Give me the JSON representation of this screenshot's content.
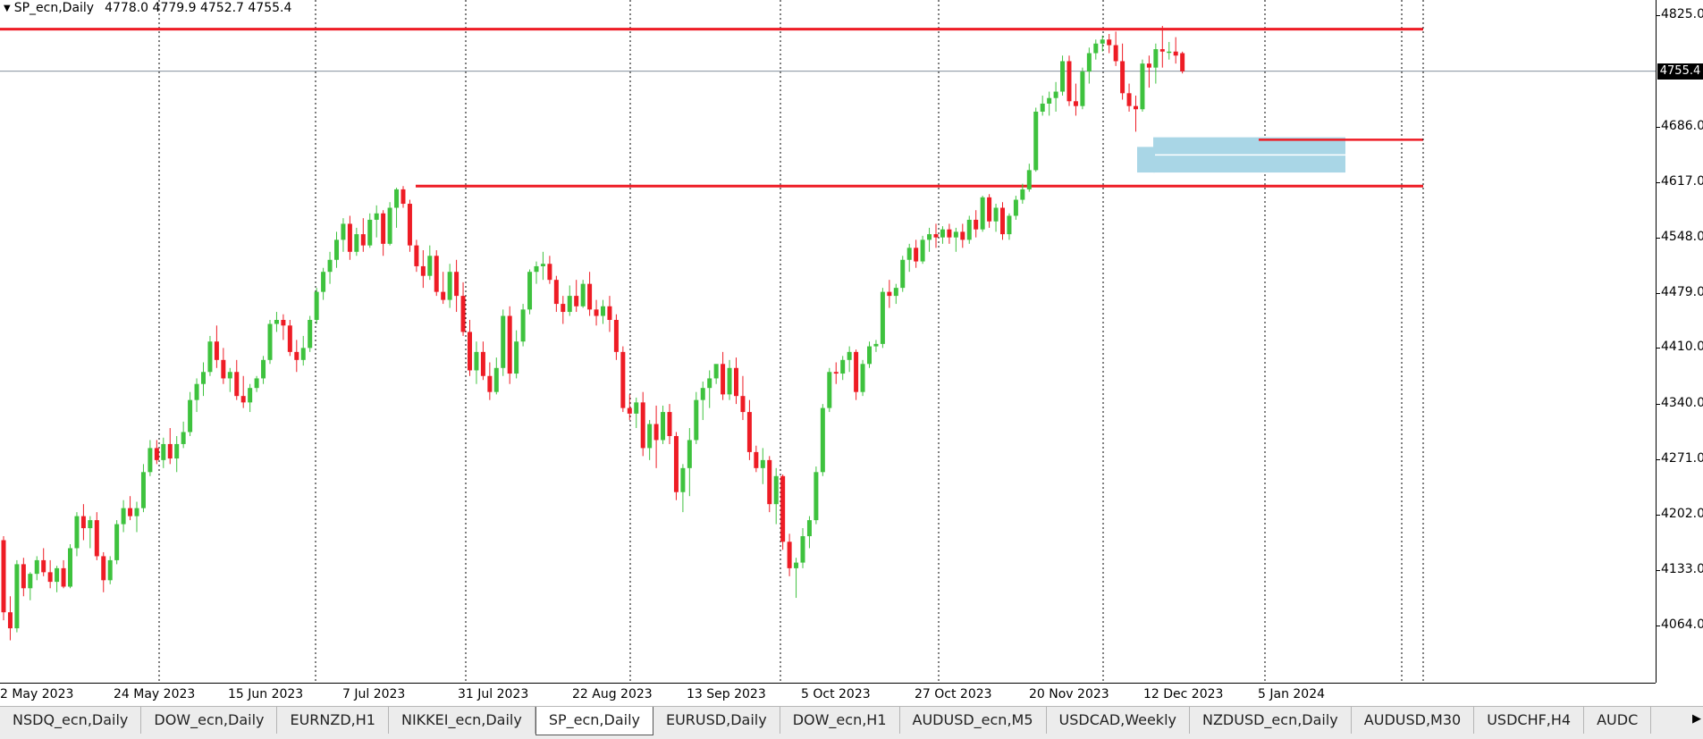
{
  "header": {
    "symbol": "SP_ecn,Daily",
    "ohlc": "4778.0 4779.9 4752.7 4755.4"
  },
  "current_price": "4755.4",
  "colors": {
    "bull": "#3ec23e",
    "bear": "#ee1c25",
    "level_line": "#ee1c25",
    "zone": "#a9d6e6",
    "grid": "#000000"
  },
  "chart_data": {
    "type": "candlestick",
    "title": "SP_ecn,Daily",
    "ylim": [
      4030,
      4831
    ],
    "y_ticks": [
      "4825.0",
      "4755.4",
      "4686.0",
      "4617.0",
      "4548.0",
      "4479.0",
      "4410.0",
      "4340.0",
      "4271.0",
      "4202.0",
      "4133.0",
      "4064.0"
    ],
    "x_ticks": [
      "2 May 2023",
      "24 May 2023",
      "15 Jun 2023",
      "7 Jul 2023",
      "31 Jul 2023",
      "22 Aug 2023",
      "13 Sep 2023",
      "5 Oct 2023",
      "27 Oct 2023",
      "20 Nov 2023",
      "12 Dec 2023",
      "5 Jan 2024"
    ],
    "grid": "vertical dotted",
    "horizontal_levels": [
      4808,
      4612,
      4670
    ],
    "current_price_line": 4755.4,
    "demand_zone": [
      4629,
      4673
    ],
    "candles": [
      [
        4170,
        4175,
        4070,
        4080
      ],
      [
        4080,
        4100,
        4045,
        4060
      ],
      [
        4060,
        4145,
        4055,
        4140
      ],
      [
        4140,
        4148,
        4100,
        4110
      ],
      [
        4110,
        4130,
        4095,
        4128
      ],
      [
        4128,
        4150,
        4120,
        4145
      ],
      [
        4145,
        4160,
        4125,
        4130
      ],
      [
        4130,
        4145,
        4110,
        4118
      ],
      [
        4118,
        4138,
        4105,
        4135
      ],
      [
        4135,
        4145,
        4110,
        4112
      ],
      [
        4112,
        4165,
        4110,
        4160
      ],
      [
        4160,
        4205,
        4150,
        4200
      ],
      [
        4200,
        4215,
        4170,
        4185
      ],
      [
        4185,
        4200,
        4160,
        4195
      ],
      [
        4195,
        4205,
        4145,
        4150
      ],
      [
        4150,
        4155,
        4105,
        4120
      ],
      [
        4120,
        4150,
        4115,
        4145
      ],
      [
        4145,
        4195,
        4140,
        4190
      ],
      [
        4190,
        4220,
        4180,
        4210
      ],
      [
        4210,
        4225,
        4195,
        4200
      ],
      [
        4200,
        4218,
        4180,
        4210
      ],
      [
        4210,
        4265,
        4205,
        4255
      ],
      [
        4255,
        4295,
        4250,
        4285
      ],
      [
        4285,
        4295,
        4265,
        4270
      ],
      [
        4270,
        4298,
        4260,
        4290
      ],
      [
        4290,
        4310,
        4265,
        4272
      ],
      [
        4272,
        4300,
        4255,
        4290
      ],
      [
        4290,
        4318,
        4285,
        4305
      ],
      [
        4305,
        4355,
        4300,
        4345
      ],
      [
        4345,
        4372,
        4330,
        4365
      ],
      [
        4365,
        4392,
        4350,
        4380
      ],
      [
        4380,
        4425,
        4375,
        4418
      ],
      [
        4418,
        4438,
        4385,
        4395
      ],
      [
        4395,
        4410,
        4365,
        4372
      ],
      [
        4372,
        4385,
        4355,
        4380
      ],
      [
        4380,
        4395,
        4345,
        4350
      ],
      [
        4350,
        4375,
        4335,
        4342
      ],
      [
        4342,
        4365,
        4330,
        4360
      ],
      [
        4360,
        4375,
        4355,
        4372
      ],
      [
        4372,
        4400,
        4365,
        4395
      ],
      [
        4395,
        4445,
        4390,
        4440
      ],
      [
        4440,
        4455,
        4430,
        4445
      ],
      [
        4445,
        4452,
        4420,
        4438
      ],
      [
        4438,
        4445,
        4400,
        4405
      ],
      [
        4405,
        4420,
        4380,
        4395
      ],
      [
        4395,
        4425,
        4388,
        4410
      ],
      [
        4410,
        4450,
        4405,
        4445
      ],
      [
        4445,
        4485,
        4440,
        4480
      ],
      [
        4480,
        4510,
        4470,
        4505
      ],
      [
        4505,
        4530,
        4490,
        4520
      ],
      [
        4520,
        4555,
        4510,
        4545
      ],
      [
        4545,
        4572,
        4530,
        4565
      ],
      [
        4565,
        4575,
        4520,
        4530
      ],
      [
        4530,
        4560,
        4525,
        4552
      ],
      [
        4552,
        4572,
        4530,
        4538
      ],
      [
        4538,
        4578,
        4535,
        4570
      ],
      [
        4570,
        4588,
        4548,
        4578
      ],
      [
        4578,
        4582,
        4525,
        4540
      ],
      [
        4540,
        4592,
        4538,
        4585
      ],
      [
        4585,
        4610,
        4560,
        4608
      ],
      [
        4608,
        4612,
        4585,
        4590
      ],
      [
        4590,
        4595,
        4530,
        4538
      ],
      [
        4538,
        4545,
        4505,
        4512
      ],
      [
        4512,
        4532,
        4485,
        4500
      ],
      [
        4500,
        4538,
        4495,
        4525
      ],
      [
        4525,
        4532,
        4475,
        4480
      ],
      [
        4480,
        4505,
        4465,
        4470
      ],
      [
        4470,
        4515,
        4460,
        4505
      ],
      [
        4505,
        4520,
        4455,
        4475
      ],
      [
        4475,
        4492,
        4425,
        4430
      ],
      [
        4430,
        4445,
        4375,
        4382
      ],
      [
        4382,
        4418,
        4365,
        4405
      ],
      [
        4405,
        4418,
        4370,
        4375
      ],
      [
        4375,
        4392,
        4345,
        4355
      ],
      [
        4355,
        4398,
        4352,
        4385
      ],
      [
        4385,
        4458,
        4375,
        4450
      ],
      [
        4450,
        4462,
        4365,
        4378
      ],
      [
        4378,
        4432,
        4372,
        4418
      ],
      [
        4418,
        4465,
        4412,
        4458
      ],
      [
        4458,
        4508,
        4452,
        4505
      ],
      [
        4505,
        4518,
        4490,
        4512
      ],
      [
        4512,
        4530,
        4495,
        4515
      ],
      [
        4515,
        4525,
        4490,
        4495
      ],
      [
        4495,
        4500,
        4455,
        4465
      ],
      [
        4465,
        4475,
        4440,
        4455
      ],
      [
        4455,
        4488,
        4450,
        4475
      ],
      [
        4475,
        4495,
        4455,
        4462
      ],
      [
        4462,
        4495,
        4460,
        4490
      ],
      [
        4490,
        4505,
        4450,
        4458
      ],
      [
        4458,
        4470,
        4438,
        4450
      ],
      [
        4450,
        4470,
        4440,
        4462
      ],
      [
        4462,
        4475,
        4430,
        4445
      ],
      [
        4445,
        4452,
        4395,
        4405
      ],
      [
        4405,
        4412,
        4330,
        4335
      ],
      [
        4335,
        4352,
        4320,
        4328
      ],
      [
        4328,
        4348,
        4310,
        4342
      ],
      [
        4342,
        4355,
        4275,
        4285
      ],
      [
        4285,
        4320,
        4270,
        4315
      ],
      [
        4315,
        4338,
        4260,
        4295
      ],
      [
        4295,
        4338,
        4290,
        4330
      ],
      [
        4330,
        4340,
        4290,
        4300
      ],
      [
        4300,
        4305,
        4220,
        4230
      ],
      [
        4230,
        4265,
        4205,
        4260
      ],
      [
        4260,
        4310,
        4225,
        4295
      ],
      [
        4295,
        4355,
        4290,
        4345
      ],
      [
        4345,
        4368,
        4320,
        4360
      ],
      [
        4360,
        4382,
        4335,
        4372
      ],
      [
        4372,
        4388,
        4365,
        4390
      ],
      [
        4390,
        4405,
        4345,
        4352
      ],
      [
        4352,
        4395,
        4345,
        4385
      ],
      [
        4385,
        4398,
        4340,
        4350
      ],
      [
        4350,
        4375,
        4320,
        4330
      ],
      [
        4330,
        4345,
        4270,
        4280
      ],
      [
        4280,
        4288,
        4255,
        4260
      ],
      [
        4260,
        4285,
        4240,
        4270
      ],
      [
        4270,
        4275,
        4205,
        4215
      ],
      [
        4215,
        4260,
        4190,
        4250
      ],
      [
        4250,
        4252,
        4158,
        4168
      ],
      [
        4168,
        4178,
        4125,
        4135
      ],
      [
        4135,
        4148,
        4098,
        4142
      ],
      [
        4142,
        4185,
        4135,
        4175
      ],
      [
        4175,
        4200,
        4160,
        4195
      ],
      [
        4195,
        4262,
        4190,
        4255
      ],
      [
        4255,
        4340,
        4250,
        4335
      ],
      [
        4335,
        4385,
        4330,
        4380
      ],
      [
        4380,
        4392,
        4365,
        4378
      ],
      [
        4378,
        4400,
        4370,
        4395
      ],
      [
        4395,
        4412,
        4380,
        4405
      ],
      [
        4405,
        4408,
        4345,
        4355
      ],
      [
        4355,
        4395,
        4350,
        4390
      ],
      [
        4390,
        4418,
        4385,
        4412
      ],
      [
        4412,
        4420,
        4405,
        4415
      ],
      [
        4415,
        4485,
        4410,
        4480
      ],
      [
        4480,
        4495,
        4460,
        4475
      ],
      [
        4475,
        4490,
        4465,
        4485
      ],
      [
        4485,
        4525,
        4480,
        4520
      ],
      [
        4520,
        4540,
        4505,
        4535
      ],
      [
        4535,
        4545,
        4510,
        4518
      ],
      [
        4518,
        4550,
        4515,
        4545
      ],
      [
        4545,
        4560,
        4530,
        4552
      ],
      [
        4552,
        4565,
        4535,
        4548
      ],
      [
        4548,
        4562,
        4540,
        4558
      ],
      [
        4558,
        4565,
        4540,
        4548
      ],
      [
        4548,
        4560,
        4530,
        4555
      ],
      [
        4555,
        4565,
        4535,
        4545
      ],
      [
        4545,
        4575,
        4540,
        4570
      ],
      [
        4570,
        4582,
        4548,
        4558
      ],
      [
        4558,
        4600,
        4555,
        4598
      ],
      [
        4598,
        4602,
        4560,
        4568
      ],
      [
        4568,
        4590,
        4555,
        4585
      ],
      [
        4585,
        4592,
        4545,
        4552
      ],
      [
        4552,
        4578,
        4545,
        4575
      ],
      [
        4575,
        4600,
        4570,
        4595
      ],
      [
        4595,
        4615,
        4590,
        4608
      ],
      [
        4608,
        4640,
        4605,
        4632
      ],
      [
        4632,
        4710,
        4630,
        4705
      ],
      [
        4705,
        4725,
        4700,
        4715
      ],
      [
        4715,
        4730,
        4700,
        4722
      ],
      [
        4722,
        4742,
        4705,
        4730
      ],
      [
        4730,
        4775,
        4725,
        4768
      ],
      [
        4768,
        4775,
        4712,
        4718
      ],
      [
        4718,
        4740,
        4700,
        4712
      ],
      [
        4712,
        4760,
        4708,
        4755
      ],
      [
        4755,
        4785,
        4740,
        4778
      ],
      [
        4778,
        4795,
        4770,
        4790
      ],
      [
        4790,
        4800,
        4780,
        4795
      ],
      [
        4795,
        4802,
        4778,
        4788
      ],
      [
        4788,
        4805,
        4762,
        4768
      ],
      [
        4768,
        4790,
        4720,
        4728
      ],
      [
        4728,
        4740,
        4705,
        4712
      ],
      [
        4712,
        4725,
        4680,
        4708
      ],
      [
        4708,
        4770,
        4705,
        4765
      ],
      [
        4765,
        4775,
        4735,
        4760
      ],
      [
        4760,
        4790,
        4740,
        4783
      ],
      [
        4783,
        4812,
        4760,
        4780
      ],
      [
        4780,
        4792,
        4770,
        4780
      ],
      [
        4780,
        4798,
        4765,
        4775
      ],
      [
        4778,
        4779.9,
        4752.7,
        4755.4
      ]
    ]
  },
  "tabs": [
    {
      "label": "NSDQ_ecn,Daily",
      "active": false
    },
    {
      "label": "DOW_ecn,Daily",
      "active": false
    },
    {
      "label": "EURNZD,H1",
      "active": false
    },
    {
      "label": "NIKKEI_ecn,Daily",
      "active": false
    },
    {
      "label": "SP_ecn,Daily",
      "active": true
    },
    {
      "label": "EURUSD,Daily",
      "active": false
    },
    {
      "label": "DOW_ecn,H1",
      "active": false
    },
    {
      "label": "AUDUSD_ecn,M5",
      "active": false
    },
    {
      "label": "USDCAD,Weekly",
      "active": false
    },
    {
      "label": "NZDUSD_ecn,Daily",
      "active": false
    },
    {
      "label": "AUDUSD,M30",
      "active": false
    },
    {
      "label": "USDCHF,H4",
      "active": false
    },
    {
      "label": "AUDC",
      "active": false
    }
  ],
  "tab_scroll_icon": "▶"
}
